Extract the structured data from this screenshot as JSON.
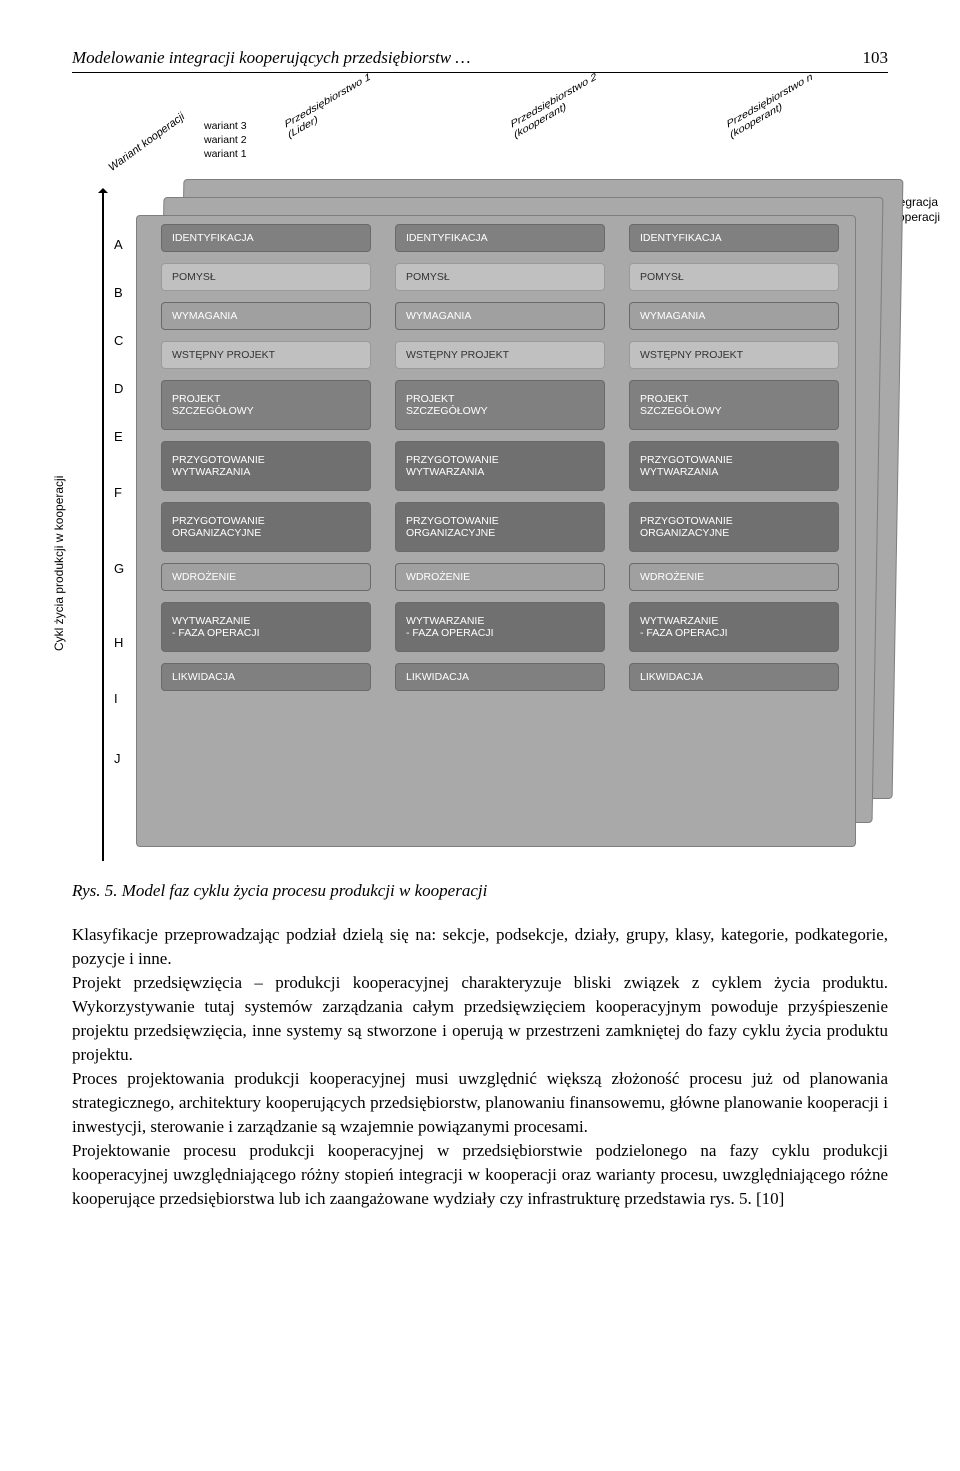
{
  "header": {
    "running_title": "Modelowanie integracji kooperujących przedsiębiorstw …",
    "page_number": "103"
  },
  "figure": {
    "type": "layered-3d-matrix",
    "axis_z_label": "Wariant kooperacji",
    "variant_labels": [
      "wariant 3",
      "wariant 2",
      "wariant 1"
    ],
    "enterprise_headers": [
      "Przedsiębiorstwo 1\n(Lider)",
      "Przedsiębiorstwo 2\n(kooperant)",
      "Przedsiębiorstwo n\n(kooperant)"
    ],
    "right_label": "Integracja\nkooperacji",
    "y_axis_label": "Cykl życia produkcji w kooperacji",
    "row_letters": [
      "A",
      "B",
      "C",
      "D",
      "E",
      "F",
      "G",
      "H",
      "I",
      "J"
    ],
    "row_gaps": [
      48,
      48,
      48,
      48,
      56,
      76,
      74,
      56,
      60,
      48
    ],
    "phases": [
      "IDENTYFIKACJA",
      "POMYSŁ",
      "WYMAGANIA",
      "WSTĘPNY PROJEKT",
      "PROJEKT\nSZCZEGÓŁOWY",
      "PRZYGOTOWANIE\nWYTWARZANIA",
      "PRZYGOTOWANIE\nORGANIZACYJNE",
      "WDROŻENIE",
      "WYTWARZANIE\n- FAZA OPERACJI",
      "LIKWIDACJA"
    ],
    "column_count": 3,
    "depth_slabs": 3,
    "phase_styles": [
      "pb-dark",
      "pb-light",
      "pb-mid",
      "pb-light",
      "pb-dark",
      "pb-darker",
      "pb-darker",
      "pb-mid",
      "pb-darker",
      "pb-dark"
    ],
    "phase_tall_idx": [
      4,
      5,
      6,
      8
    ],
    "colors": {
      "slab_bg": "#a9a9a9",
      "slab_border": "#7e7e7e",
      "pb_light": "#c0c0c0",
      "pb_mid": "#a0a0a0",
      "pb_dark": "#808080",
      "pb_darker": "#707070",
      "text_white": "#ffffff",
      "page_bg": "#ffffff"
    },
    "caption_prefix": "Rys. 5.",
    "caption": "Model faz cyklu życia procesu produkcji w kooperacji"
  },
  "paragraphs": [
    "Klasyfikacje przeprowadzając podział dzielą się na: sekcje, podsekcje, działy, grupy, klasy, kategorie, podkategorie, pozycje i inne.",
    "Projekt przedsięwzięcia – produkcji kooperacyjnej charakteryzuje bliski związek z cyklem życia produktu. Wykorzystywanie tutaj systemów zarządzania całym przedsięwzięciem kooperacyjnym powoduje przyśpieszenie projektu przedsięwzięcia, inne systemy są stworzone i operują w przestrzeni zamkniętej do fazy cyklu życia produktu projektu.",
    "Proces projektowania produkcji kooperacyjnej musi uwzględnić większą złożoność procesu już od planowania strategicznego, architektury kooperujących przedsiębiorstw, planowaniu finansowemu, główne planowanie kooperacji i inwestycji, sterowanie i zarządzanie są wzajemnie powiązanymi procesami.",
    "Projektowanie procesu produkcji kooperacyjnej w przedsiębiorstwie podzielonego na fazy cyklu produkcji kooperacyjnej uwzględniającego różny stopień integracji w kooperacji oraz warianty procesu, uwzględniającego różne kooperujące przedsiębiorstwa lub ich zaangażowane wydziały czy infrastrukturę przedstawia rys. 5. [10]"
  ]
}
